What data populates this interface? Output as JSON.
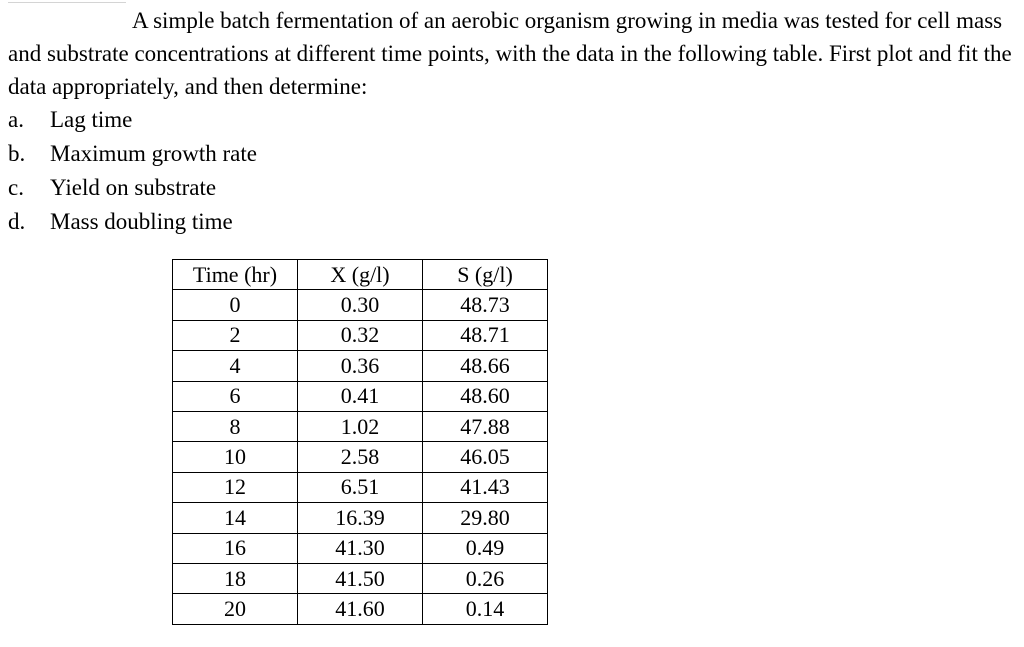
{
  "problem": {
    "intro": "A simple batch fermentation of an aerobic organism growing in media was tested for cell mass and substrate concentrations at different time points, with the data in the following table.  First plot and fit the data appropriately, and then determine:",
    "questions": [
      {
        "letter": "a.",
        "text": "Lag time"
      },
      {
        "letter": "b.",
        "text": "Maximum growth rate"
      },
      {
        "letter": "c.",
        "text": "Yield on substrate"
      },
      {
        "letter": "d.",
        "text": "Mass doubling time"
      }
    ]
  },
  "table": {
    "headers": [
      "Time (hr)",
      "X (g/l)",
      "S (g/l)"
    ],
    "rows": [
      [
        "0",
        "0.30",
        "48.73"
      ],
      [
        "2",
        "0.32",
        "48.71"
      ],
      [
        "4",
        "0.36",
        "48.66"
      ],
      [
        "6",
        "0.41",
        "48.60"
      ],
      [
        "8",
        "1.02",
        "47.88"
      ],
      [
        "10",
        "2.58",
        "46.05"
      ],
      [
        "12",
        "6.51",
        "41.43"
      ],
      [
        "14",
        "16.39",
        "29.80"
      ],
      [
        "16",
        "41.30",
        "0.49"
      ],
      [
        "18",
        "41.50",
        "0.26"
      ],
      [
        "20",
        "41.60",
        "0.14"
      ]
    ]
  }
}
